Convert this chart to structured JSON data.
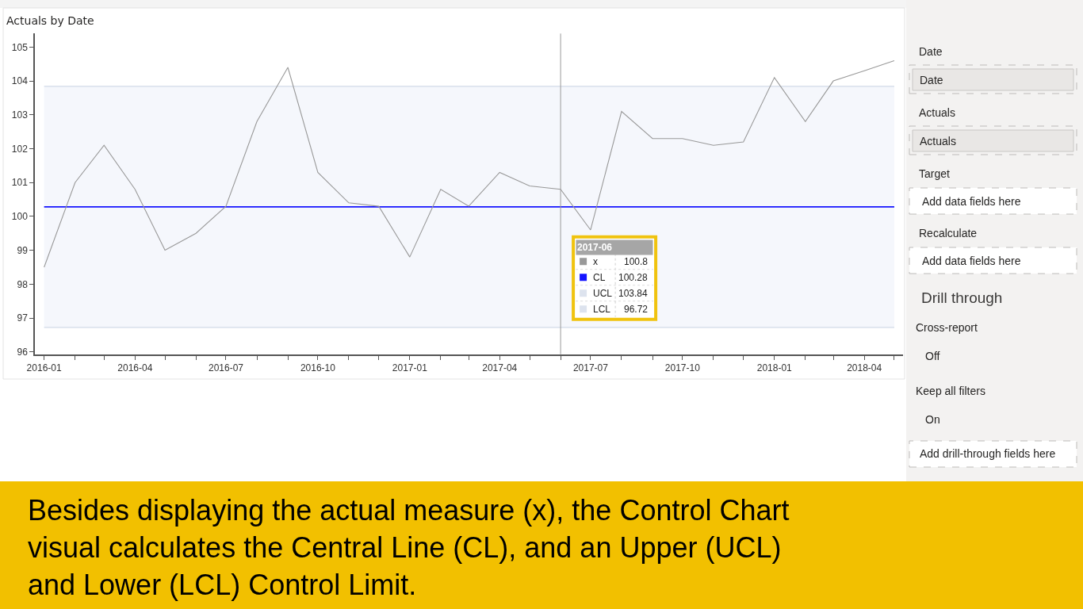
{
  "chart_data": {
    "type": "line",
    "title": "Actuals by Date",
    "x": [
      "2016-01",
      "2016-02",
      "2016-03",
      "2016-04",
      "2016-05",
      "2016-06",
      "2016-07",
      "2016-08",
      "2016-09",
      "2016-10",
      "2016-11",
      "2016-12",
      "2017-01",
      "2017-02",
      "2017-03",
      "2017-04",
      "2017-05",
      "2017-06",
      "2017-07",
      "2017-08",
      "2017-09",
      "2017-10",
      "2017-11",
      "2017-12",
      "2018-01",
      "2018-02",
      "2018-03",
      "2018-04",
      "2018-05"
    ],
    "series": [
      {
        "name": "x",
        "color": "#999999",
        "values": [
          98.5,
          101.0,
          102.1,
          100.8,
          99.0,
          99.5,
          100.3,
          102.8,
          104.4,
          101.3,
          100.4,
          100.3,
          98.8,
          100.8,
          100.3,
          101.3,
          100.9,
          100.8,
          99.6,
          103.1,
          102.3,
          102.3,
          102.1,
          102.2,
          104.1,
          102.8,
          104.0,
          104.3,
          104.6
        ]
      }
    ],
    "xlim": [
      "2015-12-23",
      "2018-05-10"
    ],
    "ylim": [
      95.93,
      105.4
    ],
    "xticks": [
      "2016-01",
      {
        "value": "2016-02",
        "label": null
      },
      {
        "value": "2016-03",
        "label": null
      },
      "2016-04",
      {
        "value": "2016-05",
        "label": null
      },
      {
        "value": "2016-06",
        "label": null
      },
      "2016-07",
      {
        "value": "2016-08",
        "label": null
      },
      {
        "value": "2016-09",
        "label": null
      },
      "2016-10",
      {
        "value": "2016-11",
        "label": null
      },
      {
        "value": "2016-12",
        "label": null
      },
      "2017-01",
      {
        "value": "2017-02",
        "label": null
      },
      {
        "value": "2017-03",
        "label": null
      },
      "2017-04",
      {
        "value": "2017-05",
        "label": null
      },
      {
        "value": "2017-06",
        "label": null
      },
      "2017-07",
      {
        "value": "2017-08",
        "label": null
      },
      {
        "value": "2017-09",
        "label": null
      },
      "2017-10",
      {
        "value": "2017-11",
        "label": null
      },
      {
        "value": "2017-12",
        "label": null
      },
      "2018-01",
      {
        "value": "2018-02",
        "label": null
      },
      {
        "value": "2018-03",
        "label": null
      },
      "2018-04",
      {
        "value": "2018-05",
        "label": null
      }
    ],
    "yticks": [
      96,
      97,
      98,
      99,
      100,
      101,
      102,
      103,
      104,
      105
    ],
    "ref_lines": [
      {
        "axis": "y",
        "value": 100.28,
        "label": "CL",
        "color": "#1414ff"
      },
      {
        "axis": "y",
        "value": 103.84,
        "label": "UCL",
        "color": "#dde3ee"
      },
      {
        "axis": "y",
        "value": 96.72,
        "label": "LCL",
        "color": "#dde3ee"
      },
      {
        "axis": "x",
        "value": "2017-06",
        "color": "#9a9a9a"
      }
    ],
    "bands": [
      {
        "axis": "y",
        "from": 96.72,
        "to": 103.84,
        "color": "#f5f7fc"
      }
    ],
    "legend": "bottom",
    "legend_title": "2017-06",
    "annotations": [
      "Besides displaying the actual measure (x), the Control Chart visual calculates the Central Line (CL), and an Upper (UCL) and Lower (LCL) Control Limit.",
      "100.8",
      "100.28",
      "103.84",
      "96.72",
      "Date",
      "Date",
      "Actuals",
      "Actuals",
      "Target",
      "Add data fields here",
      "Recalculate",
      "Add data fields here",
      "Drill through",
      "Cross-report",
      "Off",
      "Keep all filters",
      "On",
      "Add drill-through fields here"
    ]
  }
}
